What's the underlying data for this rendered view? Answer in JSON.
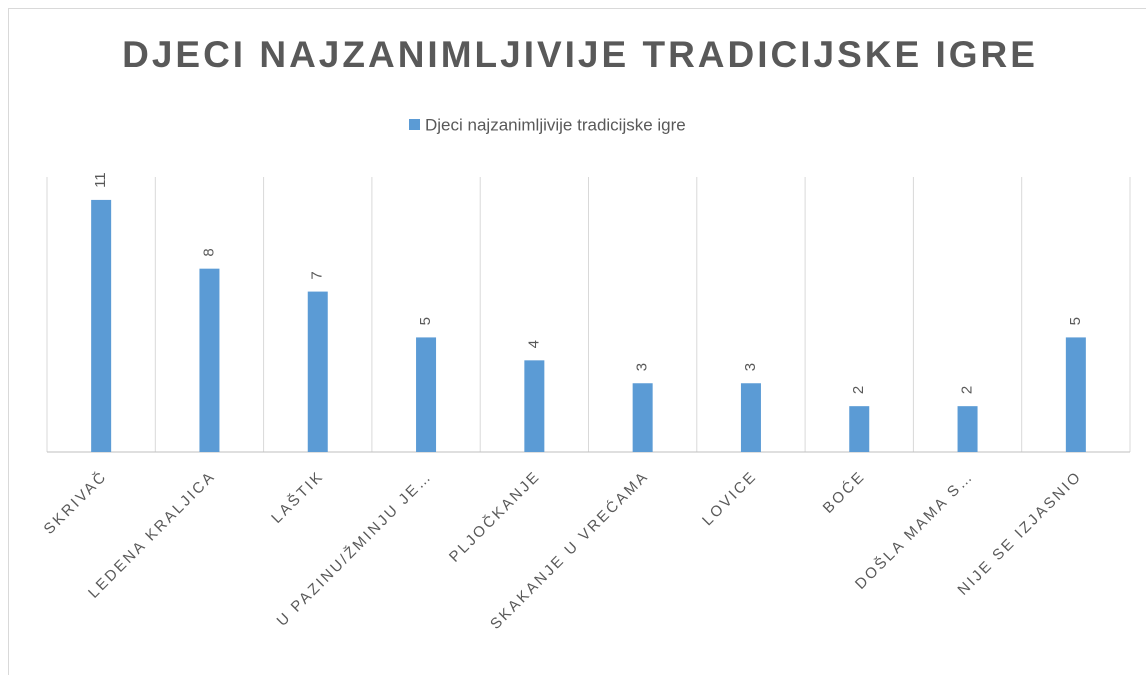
{
  "chart_data": {
    "type": "bar",
    "title": "DJECI NAJZANIMLJIVIJE TRADICIJSKE IGRE",
    "categories": [
      "SKRIVAČ",
      "LEDENA KRALJICA",
      "LAŠTIK",
      "U PAZINU/ŽMINJU JE…",
      "PLJOČKANJE",
      "SKAKANJE U VREĆAMA",
      "LOVICE",
      "BOĆE",
      "DOŠLA MAMA S…",
      "NIJE SE IZJASNIO"
    ],
    "series": [
      {
        "name": "Djeci najzanimljivije tradicijske igre",
        "color": "#5b9bd5",
        "values": [
          11,
          8,
          7,
          5,
          4,
          3,
          3,
          2,
          2,
          5
        ]
      }
    ],
    "ylim": [
      0,
      12
    ],
    "legend": "top"
  }
}
